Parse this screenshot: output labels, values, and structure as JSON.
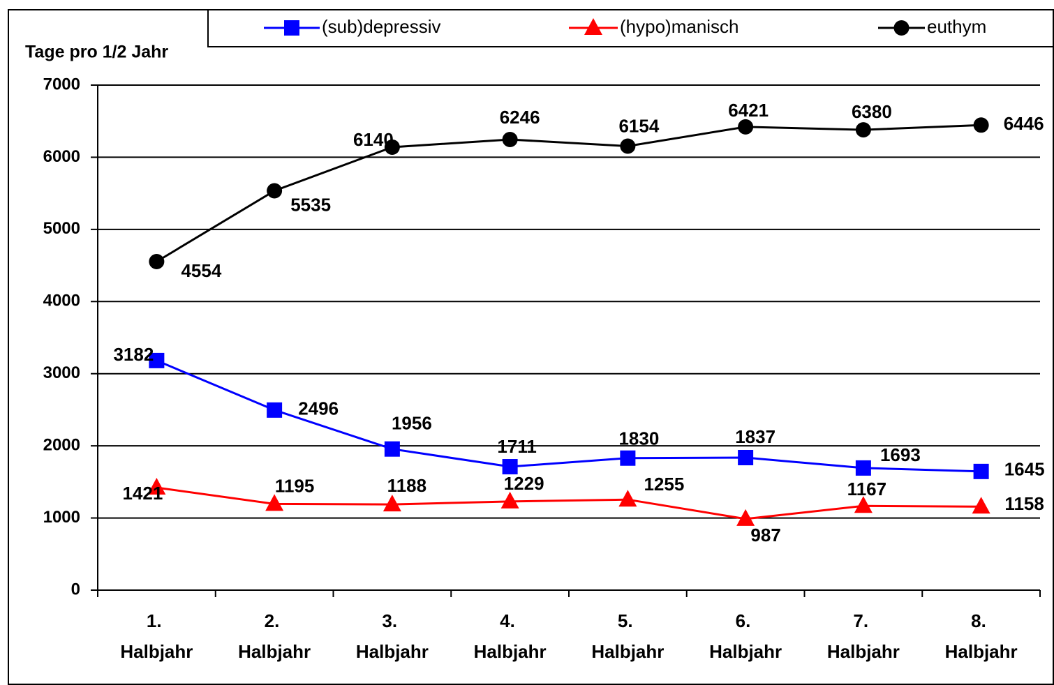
{
  "chart_data": {
    "type": "line",
    "y_axis_label": "Tage pro 1/2 Jahr",
    "categories": [
      "1. Halbjahr",
      "2. Halbjahr",
      "3. Halbjahr",
      "4. Halbjahr",
      "5. Halbjahr",
      "6. Halbjahr",
      "7. Halbjahr",
      "8. Halbjahr"
    ],
    "series": [
      {
        "name": "(sub)depressiv",
        "color": "#0000ff",
        "marker": "square",
        "values": [
          3182,
          2496,
          1956,
          1711,
          1830,
          1837,
          1693,
          1645
        ]
      },
      {
        "name": "(hypo)manisch",
        "color": "#ff0000",
        "marker": "triangle",
        "values": [
          1421,
          1195,
          1188,
          1229,
          1255,
          987,
          1167,
          1158
        ]
      },
      {
        "name": "euthym",
        "color": "#000000",
        "marker": "circle",
        "values": [
          4554,
          5535,
          6140,
          6246,
          6154,
          6421,
          6380,
          6446
        ]
      }
    ],
    "ylim": [
      0,
      7000
    ],
    "yticks": [
      0,
      1000,
      2000,
      3000,
      4000,
      5000,
      6000,
      7000
    ],
    "grid": true,
    "legend": "top"
  }
}
